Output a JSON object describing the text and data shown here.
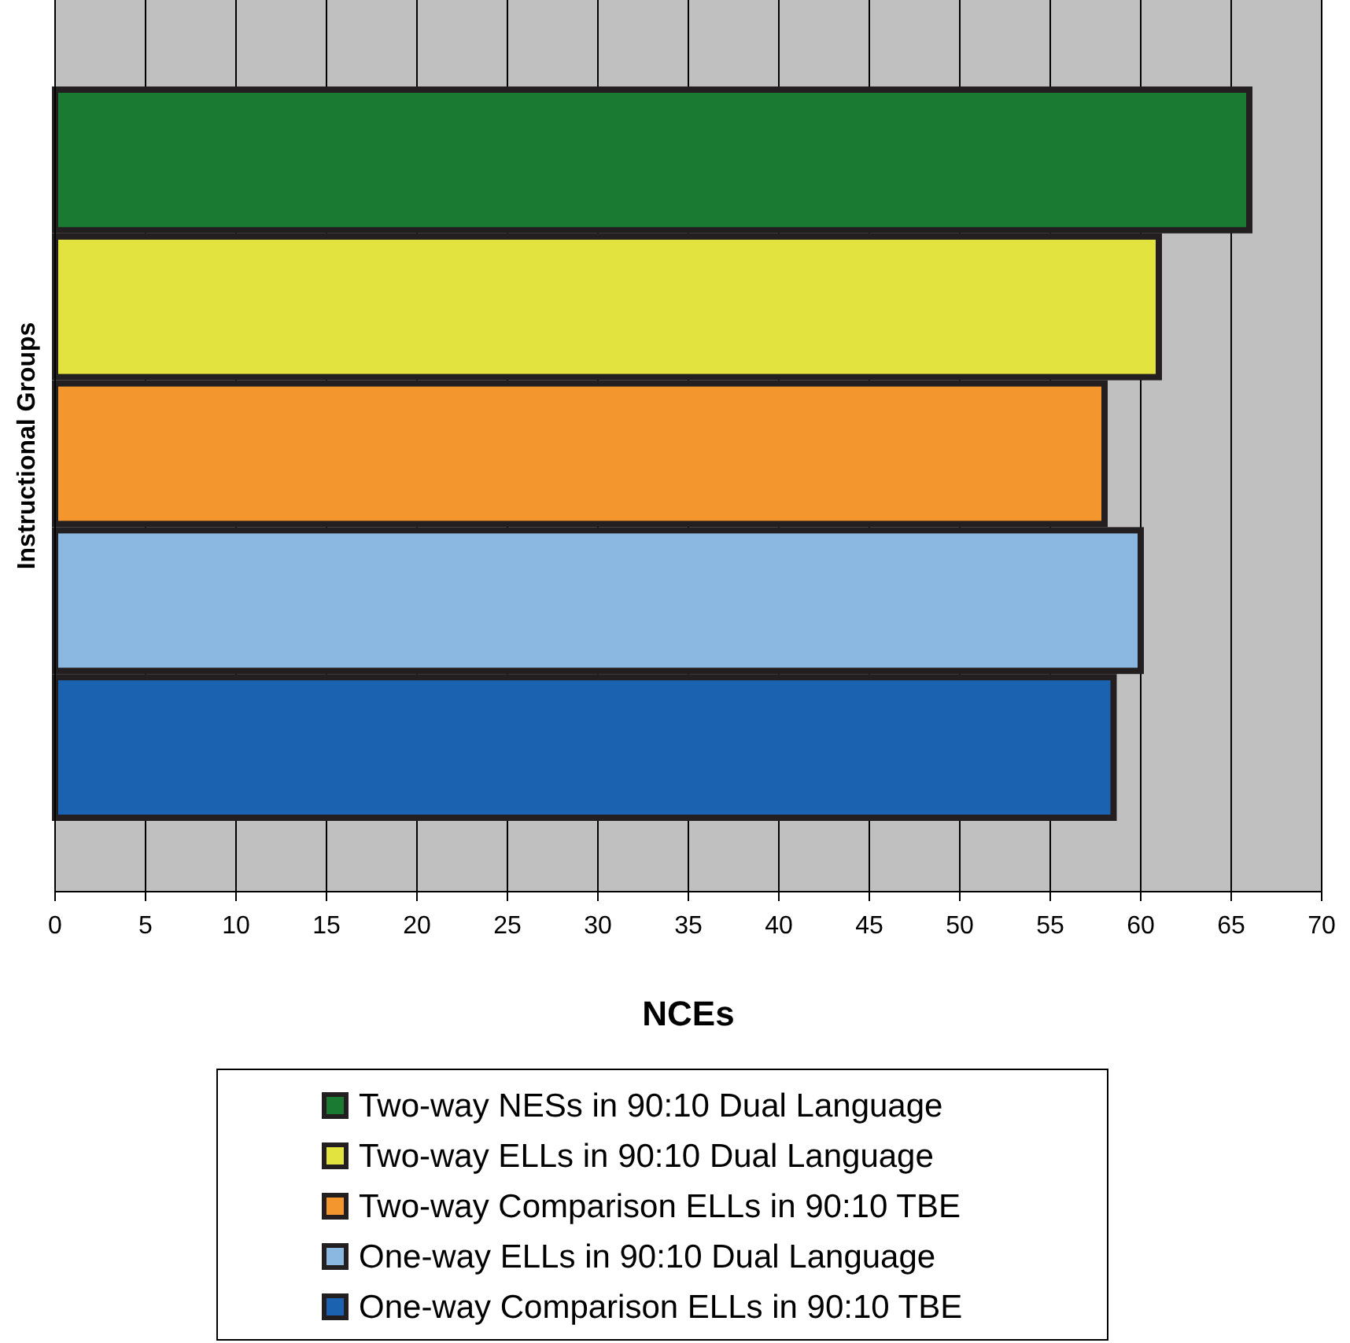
{
  "chart_data": {
    "type": "bar",
    "orientation": "horizontal",
    "ylabel": "Instructional Groups",
    "xlabel": "NCEs",
    "categories": [
      null,
      null,
      null,
      null,
      null
    ],
    "series": [
      {
        "name": "Two-way NESs in 90:10 Dual Language",
        "color": "#1a7a32",
        "values": [
          66,
          null,
          null,
          null,
          null
        ]
      },
      {
        "name": "Two-way ELLs in 90:10 Dual Language",
        "color": "#e3e33f",
        "values": [
          null,
          61,
          null,
          null,
          null
        ]
      },
      {
        "name": "Two-way Comparison ELLs in 90:10 TBE",
        "color": "#f4962e",
        "values": [
          null,
          null,
          58,
          null,
          null
        ]
      },
      {
        "name": "One-way ELLs in 90:10 Dual Language",
        "color": "#8bb8e0",
        "values": [
          null,
          null,
          null,
          60,
          null
        ]
      },
      {
        "name": "One-way Comparison ELLs in 90:10 TBE",
        "color": "#1b63b0",
        "values": [
          null,
          null,
          null,
          null,
          58.5
        ]
      }
    ],
    "xlim": [
      0,
      70
    ],
    "xticks": [
      0,
      5,
      10,
      15,
      20,
      25,
      30,
      35,
      40,
      45,
      50,
      55,
      60,
      65,
      70
    ],
    "grid": "x",
    "legend": "bottom"
  }
}
